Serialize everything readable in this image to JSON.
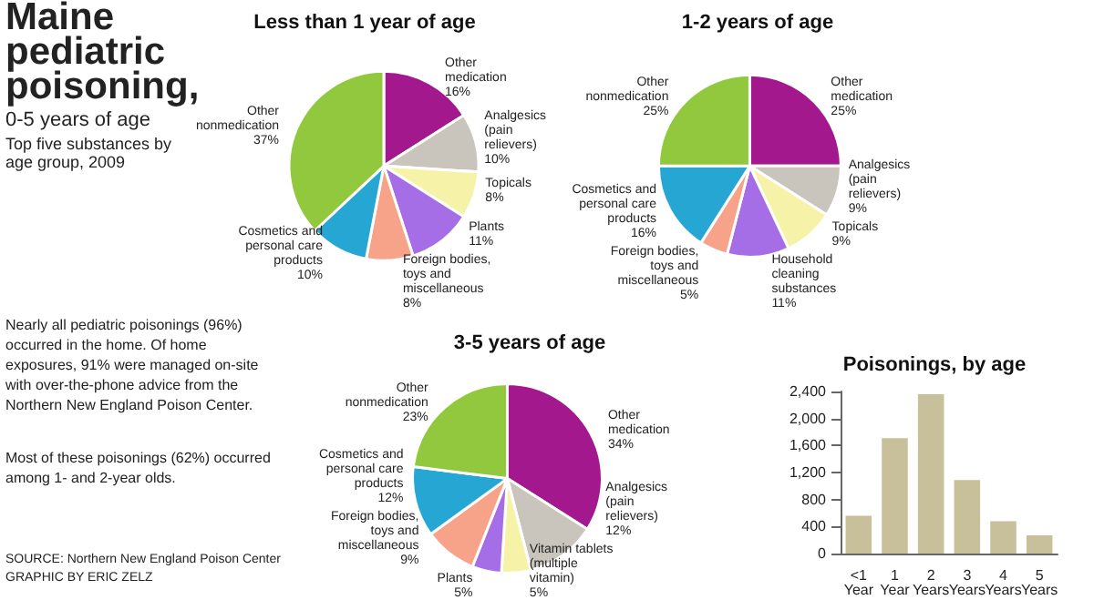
{
  "chart_data": [
    {
      "type": "other",
      "title": "Maine pediatric poisoning,",
      "subtitle": "0-5 years of age",
      "annotations": [
        "Top five substances by age group, 2009",
        "Nearly all pediatric poisonings (96%) occurred in the home. Of home exposures, 91% were managed on-site with over-the-phone advice from the Northern New England Poison Center.",
        "Most of these poisonings (62%) occurred among 1- and 2-year olds.",
        "SOURCE: Northern New England Poison Center",
        "GRAPHIC BY ERIC ZELZ"
      ]
    },
    {
      "type": "pie",
      "title": "Less than 1 year of age",
      "categories": [
        "Other medication",
        "Analgesics (pain relievers)",
        "Topicals",
        "Plants",
        "Foreign bodies, toys and miscellaneous",
        "Cosmetics and personal care products",
        "Other nonmedication"
      ],
      "values": [
        16,
        10,
        8,
        11,
        8,
        10,
        37
      ],
      "value_labels": [
        "16%",
        "10%",
        "8%",
        "11%",
        "8%",
        "10%",
        "37%"
      ],
      "colors": [
        "#a3188c",
        "#c9c5bd",
        "#f6f3a8",
        "#a56ee6",
        "#f7a38a",
        "#25a6d3",
        "#92c83e"
      ]
    },
    {
      "type": "pie",
      "title": "1-2 years of age",
      "categories": [
        "Other medication",
        "Analgesics (pain relievers)",
        "Topicals",
        "Household cleaning substances",
        "Foreign bodies, toys and miscellaneous",
        "Cosmetics and personal care products",
        "Other nonmedication"
      ],
      "values": [
        25,
        9,
        9,
        11,
        5,
        16,
        25
      ],
      "value_labels": [
        "25%",
        "9%",
        "9%",
        "11%",
        "5%",
        "16%",
        "25%"
      ],
      "colors": [
        "#a3188c",
        "#c9c5bd",
        "#f6f3a8",
        "#a56ee6",
        "#f7a38a",
        "#25a6d3",
        "#92c83e"
      ]
    },
    {
      "type": "pie",
      "title": "3-5 years of age",
      "categories": [
        "Other medication",
        "Analgesics (pain relievers)",
        "Vitamin tablets (multiple vitamin)",
        "Plants",
        "Foreign bodies, toys and miscellaneous",
        "Cosmetics and personal care products",
        "Other nonmedication"
      ],
      "values": [
        34,
        12,
        5,
        5,
        9,
        12,
        23
      ],
      "value_labels": [
        "34%",
        "12%",
        "5%",
        "5%",
        "9%",
        "12%",
        "23%"
      ],
      "colors": [
        "#a3188c",
        "#c9c5bd",
        "#f6f3a8",
        "#a56ee6",
        "#f7a38a",
        "#25a6d3",
        "#92c83e"
      ]
    },
    {
      "type": "bar",
      "title": "Poisonings, by age",
      "categories": [
        "<1 Year",
        "1 Year",
        "2 Years",
        "3 Years",
        "4 Years",
        "5 Years"
      ],
      "values": [
        560,
        1710,
        2360,
        1090,
        480,
        270
      ],
      "color": "#c8c09a",
      "ylim": [
        0,
        2400
      ],
      "yticks": [
        0,
        400,
        {
          "value": 800,
          "label": "800"
        },
        {
          "value": 1200,
          "label": "1,200"
        },
        {
          "value": 1600,
          "label": "1,600"
        },
        {
          "value": 2000,
          "label": "2,000"
        },
        {
          "value": 2400,
          "label": "2,400"
        }
      ],
      "grid": false
    }
  ]
}
